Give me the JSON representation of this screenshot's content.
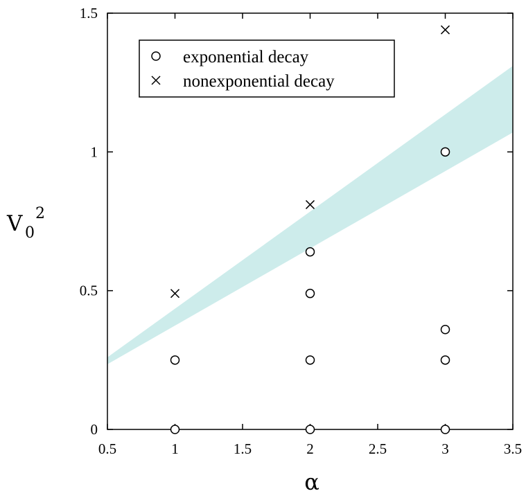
{
  "chart_data": {
    "type": "scatter",
    "title": "",
    "xlabel": "α",
    "ylabel": {
      "base": "V",
      "subscript": "0",
      "superscript": "2"
    },
    "xlim": [
      0.5,
      3.5
    ],
    "ylim": [
      0,
      1.5
    ],
    "xticks": [
      "0.5",
      "1",
      "1.5",
      "2",
      "2.5",
      "3",
      "3.5"
    ],
    "yticks": [
      "0",
      "0.5",
      "1",
      "1.5"
    ],
    "grid": false,
    "legend_position": "top-left",
    "series": [
      {
        "name": "exponential decay",
        "marker": "circle",
        "points": [
          [
            1,
            0
          ],
          [
            1,
            0.25
          ],
          [
            2,
            0
          ],
          [
            2,
            0.25
          ],
          [
            2,
            0.49
          ],
          [
            2,
            0.64
          ],
          [
            3,
            0
          ],
          [
            3,
            0.25
          ],
          [
            3,
            0.36
          ],
          [
            3,
            1.0
          ]
        ]
      },
      {
        "name": "nonexponential decay",
        "marker": "cross",
        "points": [
          [
            1,
            0.49
          ],
          [
            2,
            0.81
          ],
          [
            3,
            1.44
          ]
        ]
      }
    ],
    "band": {
      "color": "#cdeceb",
      "upper": [
        [
          0.5,
          0.26
        ],
        [
          3.5,
          1.31
        ]
      ],
      "lower": [
        [
          0.5,
          0.235
        ],
        [
          3.5,
          1.07
        ]
      ]
    }
  }
}
